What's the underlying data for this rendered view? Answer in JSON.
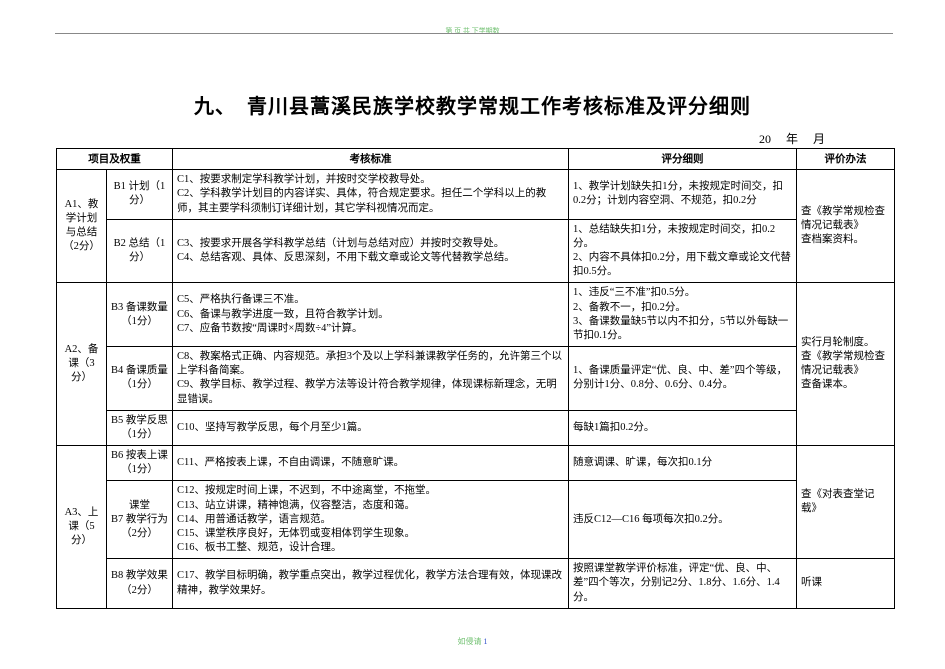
{
  "header_micro": "第 页 共 下学期数",
  "title": "九、　青川县蒿溪民族学校教学常规工作考核标准及评分细则",
  "date_prefix": "20",
  "date_year_label": "年",
  "date_month_label": "月",
  "columns": {
    "proj": "项目及权重",
    "std": "考核标准",
    "rule": "评分细则",
    "method": "评价办法"
  },
  "rows": {
    "a1": {
      "label": "A1、教学计划与总结（2分）"
    },
    "a1b1": {
      "label": "B1 计划（1分）",
      "c": "C1、按要求制定学科教学计划，并按时交学校教导处。\nC2、学科教学计划目的内容详实、具体，符合规定要求。担任二个学科以上的教师，其主要学科须制订详细计划，其它学科视情况而定。",
      "d": "1、教学计划缺失扣1分，未按规定时间交，扣0.2分；计划内容空洞、不规范，扣0.2分"
    },
    "a1b2": {
      "label": "B2 总结（1分）",
      "c": "C3、按要求开展各学科教学总结（计划与总结对应）并按时交教导处。\nC4、总结客观、具体、反思深刻，不用下载文章或论文等代替教学总结。",
      "d": "1、总结缺失扣1分，未按规定时间交，扣0.2分。\n2、内容不具体扣0.2分，用下载文章或论文代替扣0.5分。"
    },
    "a1e": "查《教学常规检查情况记载表》\n查档案资料。",
    "a2": {
      "label": "A2、备课（3分）"
    },
    "a2b3": {
      "label": "B3 备课数量（1分）",
      "c": "C5、严格执行备课三不准。\nC6、备课与教学进度一致，且符合教学计划。\nC7、应备节数按“周课时×周数÷4”计算。",
      "d": "1、违反“三不准”扣0.5分。\n2、备教不一，扣0.2分。\n3、备课数量缺5节以内不扣分，5节以外每缺一节扣0.1分。"
    },
    "a2b4": {
      "label": "B4 备课质量（1分）",
      "c": "C8、教案格式正确、内容规范。承担3个及以上学科兼课教学任务的，允许第三个以上学科备简案。\nC9、教学目标、教学过程、教学方法等设计符合教学规律，体现课标新理念，无明显错误。",
      "d": "1、备课质量评定“优、良、中、差”四个等级，分别计1分、0.8分、0.6分、0.4分。"
    },
    "a2b5": {
      "label": "B5 教学反思（1分）",
      "c": "C10、坚持写教学反思，每个月至少1篇。",
      "d": "每缺1篇扣0.2分。"
    },
    "a2e": "实行月轮制度。\n查《教学常规检查情况记载表》\n查备课本。",
    "a3": {
      "label": "A3、上课（5分）"
    },
    "a3b6": {
      "label": "B6 按表上课（1分）",
      "c": "C11、严格按表上课，不自由调课，不随意旷课。",
      "d": "随意调课、旷课，每次扣0.1分"
    },
    "a3b7": {
      "label": "课堂\nB7 教学行为（2分）",
      "c": "C12、按规定时间上课，不迟到，不中途离堂，不拖堂。\nC13、站立讲课，精神饱满，仪容整洁，态度和蔼。\nC14、用普通话教学，语言规范。\nC15、课堂秩序良好，无体罚或变相体罚学生现象。\nC16、板书工整、规范，设计合理。",
      "d": "违反C12—C16 每项每次扣0.2分。"
    },
    "a3b8": {
      "label": "B8 教学效果（2分）",
      "c": "C17、教学目标明确，教学重点突出，教学过程优化，教学方法合理有效，体现课改精神，教学效果好。",
      "d": "按照课堂教学评价标准，评定“优、良、中、差”四个等次，分别记2分、1.8分、1.6分、1.4分。"
    },
    "a3e1": "查《对表查堂记载》",
    "a3e2": "听课"
  },
  "footer_micro_text": "如侵请 ",
  "footer_page": "1"
}
